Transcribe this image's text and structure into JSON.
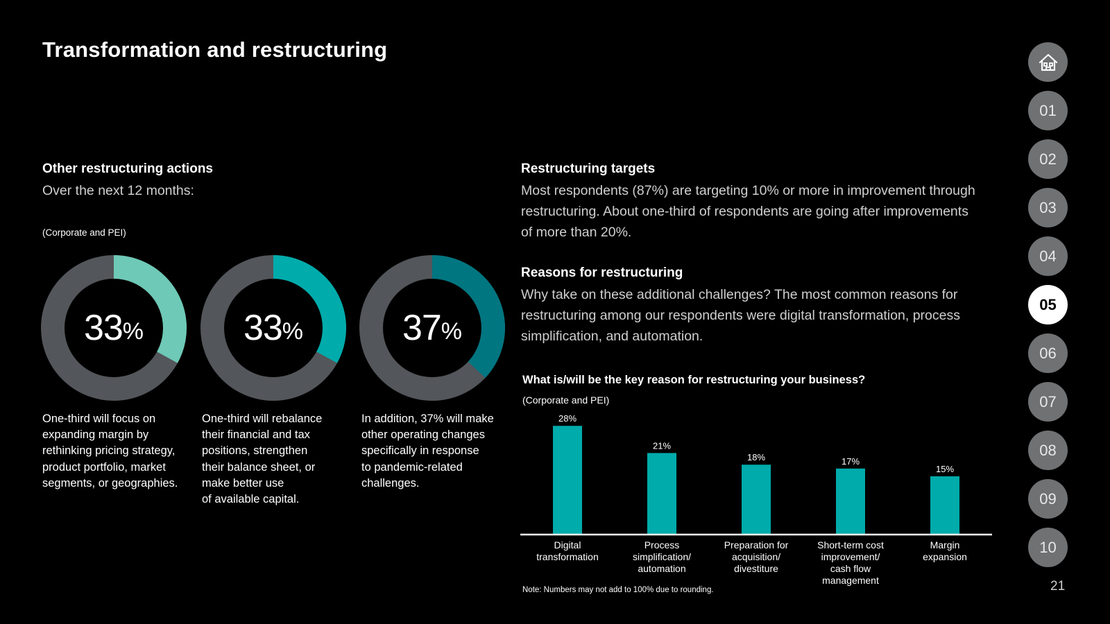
{
  "page": {
    "title": "Transformation and restructuring",
    "page_number": "21"
  },
  "left": {
    "heading": "Other restructuring actions",
    "subheading": "Over the next 12 months:",
    "note": "(Corporate and PEI)",
    "donuts": [
      {
        "value": 33,
        "num": "33",
        "pct": "%",
        "color": "#6ec9b6",
        "caption": "One-third will focus on\nexpanding margin by\nrethinking pricing strategy,\nproduct portfolio, market\nsegments, or geographies."
      },
      {
        "value": 33,
        "num": "33",
        "pct": "%",
        "color": "#00abab",
        "caption": "One-third will rebalance\ntheir financial and tax\npositions, strengthen\ntheir balance sheet, or\nmake better use\nof available capital."
      },
      {
        "value": 37,
        "num": "37",
        "pct": "%",
        "color": "#007681",
        "caption": "In addition, 37% will make\nother operating changes\nspecifically in response\nto pandemic-related\nchallenges."
      }
    ],
    "track_color": "#53565a"
  },
  "right": {
    "targets_heading": "Restructuring targets",
    "targets_text": "Most respondents (87%) are targeting 10% or more in improvement through restructuring. About one-third of respondents are going after improvements of more than 20%.",
    "reasons_heading": "Reasons for restructuring",
    "reasons_text": "Why take on these additional challenges? The most common reasons for restructuring among our respondents were digital transformation, process simplification, and automation."
  },
  "chart_data": {
    "type": "bar",
    "title": "What is/will be the key reason for restructuring your business?",
    "subtitle": "(Corporate and PEI)",
    "categories": [
      [
        "Digital",
        "transformation"
      ],
      [
        "Process",
        "simplification/",
        "automation"
      ],
      [
        "Preparation for",
        "acquisition/",
        "divestiture"
      ],
      [
        "Short-term cost",
        "improvement/",
        "cash flow",
        "management"
      ],
      [
        "Margin",
        "expansion"
      ]
    ],
    "values": [
      28,
      21,
      18,
      17,
      15
    ],
    "value_labels": [
      "28%",
      "21%",
      "18%",
      "17%",
      "15%"
    ],
    "ylim": [
      0,
      30
    ],
    "bar_color": "#00abab",
    "grid": false,
    "note": "Note: Numbers may not add to 100% due to rounding."
  },
  "nav": {
    "items": [
      "01",
      "02",
      "03",
      "04",
      "05",
      "06",
      "07",
      "08",
      "09",
      "10"
    ],
    "active": "05"
  }
}
